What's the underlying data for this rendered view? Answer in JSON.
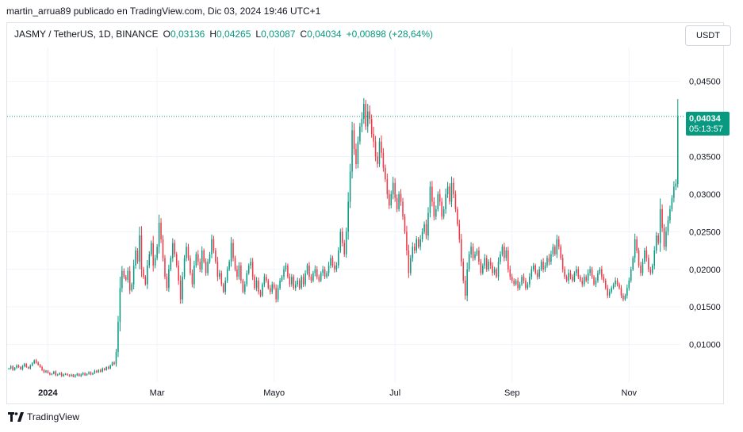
{
  "header": {
    "publisher_line": "martin_arrua89 publicado en TradingView.com, Dic 03, 2024 19:46 UTC+1"
  },
  "legend": {
    "symbol": "JASMY / TetherUS, 1D, BINANCE",
    "o_label": "O",
    "o_value": "0,03136",
    "h_label": "H",
    "h_value": "0,04265",
    "l_label": "L",
    "l_value": "0,03087",
    "c_label": "C",
    "c_value": "0,04034",
    "change": "+0,00898 (+28,64%)"
  },
  "currency_button": "USDT",
  "price_tag": {
    "price": "0,04034",
    "countdown": "05:13:57"
  },
  "footer": {
    "brand": "TradingView"
  },
  "colors": {
    "up": "#089981",
    "down": "#f23645",
    "grid": "#f0f3fa",
    "last_price_line": "#089981"
  },
  "chart_data": {
    "type": "candlestick",
    "ylim": [
      0.005,
      0.0495
    ],
    "y_ticks": [
      "0,01000",
      "0,01500",
      "0,02000",
      "0,02500",
      "0,03000",
      "0,03500",
      "0,04500"
    ],
    "y_tick_values": [
      0.01,
      0.015,
      0.02,
      0.025,
      0.03,
      0.035,
      0.045
    ],
    "x_labels": [
      "2024",
      "Mar",
      "Mayo",
      "Jul",
      "Sep",
      "Nov"
    ],
    "x_label_index": [
      20,
      76,
      136,
      198,
      258,
      318
    ],
    "last_price": 0.04034,
    "series": [
      {
        "name": "JASMY / TetherUS",
        "close": [
          0.0068,
          0.0071,
          0.0066,
          0.0069,
          0.0072,
          0.007,
          0.0067,
          0.0071,
          0.0074,
          0.007,
          0.0068,
          0.0072,
          0.0075,
          0.0079,
          0.0076,
          0.0073,
          0.007,
          0.0066,
          0.0063,
          0.0065,
          0.0062,
          0.006,
          0.0061,
          0.0064,
          0.0059,
          0.006,
          0.0062,
          0.0058,
          0.006,
          0.0061,
          0.0059,
          0.0058,
          0.006,
          0.0057,
          0.0059,
          0.0061,
          0.0058,
          0.006,
          0.0062,
          0.0059,
          0.0061,
          0.0063,
          0.006,
          0.0062,
          0.0065,
          0.0063,
          0.0066,
          0.0064,
          0.0068,
          0.0066,
          0.007,
          0.0068,
          0.0072,
          0.0076,
          0.0074,
          0.009,
          0.013,
          0.0175,
          0.0198,
          0.019,
          0.0186,
          0.0198,
          0.0172,
          0.018,
          0.0205,
          0.0225,
          0.021,
          0.0245,
          0.02,
          0.019,
          0.018,
          0.0205,
          0.022,
          0.0235,
          0.0205,
          0.0215,
          0.023,
          0.0262,
          0.024,
          0.0215,
          0.019,
          0.0175,
          0.02,
          0.0215,
          0.0235,
          0.022,
          0.0205,
          0.0185,
          0.016,
          0.019,
          0.0215,
          0.023,
          0.0215,
          0.0195,
          0.018,
          0.0205,
          0.022,
          0.021,
          0.02,
          0.0225,
          0.021,
          0.0195,
          0.021,
          0.022,
          0.024,
          0.0225,
          0.021,
          0.019,
          0.0195,
          0.018,
          0.017,
          0.0185,
          0.02,
          0.021,
          0.0235,
          0.0215,
          0.02,
          0.019,
          0.0205,
          0.0185,
          0.017,
          0.018,
          0.0195,
          0.0205,
          0.021,
          0.019,
          0.0175,
          0.0185,
          0.017,
          0.0165,
          0.018,
          0.019,
          0.0185,
          0.0175,
          0.017,
          0.018,
          0.0175,
          0.016,
          0.0175,
          0.0185,
          0.019,
          0.02,
          0.0205,
          0.019,
          0.018,
          0.019,
          0.0175,
          0.018,
          0.0185,
          0.0175,
          0.019,
          0.018,
          0.0195,
          0.0205,
          0.019,
          0.0185,
          0.0195,
          0.02,
          0.019,
          0.0185,
          0.0195,
          0.02,
          0.019,
          0.0195,
          0.0205,
          0.0215,
          0.0205,
          0.02,
          0.0205,
          0.0225,
          0.025,
          0.0235,
          0.022,
          0.025,
          0.029,
          0.033,
          0.0385,
          0.036,
          0.034,
          0.037,
          0.039,
          0.04,
          0.042,
          0.039,
          0.041,
          0.04,
          0.038,
          0.037,
          0.035,
          0.034,
          0.037,
          0.0355,
          0.0335,
          0.032,
          0.03,
          0.0285,
          0.03,
          0.0315,
          0.0295,
          0.028,
          0.03,
          0.029,
          0.027,
          0.025,
          0.0225,
          0.0195,
          0.0215,
          0.023,
          0.0225,
          0.024,
          0.023,
          0.024,
          0.025,
          0.026,
          0.0245,
          0.0275,
          0.031,
          0.029,
          0.027,
          0.028,
          0.03,
          0.029,
          0.027,
          0.028,
          0.03,
          0.031,
          0.029,
          0.0315,
          0.03,
          0.028,
          0.026,
          0.024,
          0.021,
          0.0185,
          0.0165,
          0.02,
          0.022,
          0.023,
          0.0215,
          0.022,
          0.0225,
          0.021,
          0.0195,
          0.0205,
          0.0215,
          0.02,
          0.021,
          0.0205,
          0.0195,
          0.02,
          0.019,
          0.021,
          0.022,
          0.023,
          0.0215,
          0.0225,
          0.02,
          0.019,
          0.0185,
          0.018,
          0.0185,
          0.0175,
          0.018,
          0.019,
          0.0185,
          0.0175,
          0.018,
          0.019,
          0.02,
          0.0205,
          0.0195,
          0.019,
          0.02,
          0.021,
          0.02,
          0.0205,
          0.0215,
          0.021,
          0.022,
          0.023,
          0.022,
          0.024,
          0.023,
          0.0215,
          0.02,
          0.019,
          0.0185,
          0.0195,
          0.019,
          0.0185,
          0.0195,
          0.02,
          0.019,
          0.0185,
          0.018,
          0.019,
          0.0185,
          0.0195,
          0.02,
          0.019,
          0.018,
          0.0185,
          0.0195,
          0.02,
          0.019,
          0.0185,
          0.0175,
          0.0165,
          0.017,
          0.0175,
          0.018,
          0.0185,
          0.018,
          0.0175,
          0.0165,
          0.016,
          0.0165,
          0.0175,
          0.0185,
          0.02,
          0.0215,
          0.024,
          0.0225,
          0.0205,
          0.0195,
          0.021,
          0.0225,
          0.0215,
          0.02,
          0.0195,
          0.0205,
          0.0225,
          0.0245,
          0.0235,
          0.028,
          0.0255,
          0.023,
          0.025,
          0.0265,
          0.028,
          0.0295,
          0.031,
          0.0314,
          0.0403
        ]
      }
    ]
  }
}
